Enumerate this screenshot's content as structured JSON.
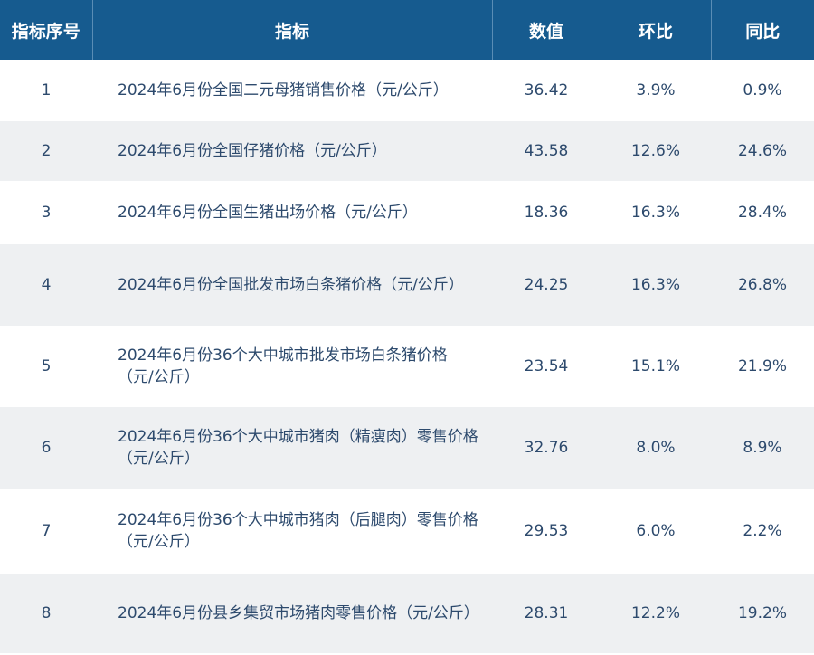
{
  "headers": {
    "index": "指标序号",
    "indicator": "指标",
    "value": "数值",
    "mom": "环比",
    "yoy": "同比"
  },
  "rows": [
    {
      "index": "1",
      "indicator": "2024年6月份全国二元母猪销售价格（元/公斤）",
      "value": "36.42",
      "mom": "3.9%",
      "yoy": "0.9%"
    },
    {
      "index": "2",
      "indicator": "2024年6月份全国仔猪价格（元/公斤）",
      "value": "43.58",
      "mom": "12.6%",
      "yoy": "24.6%"
    },
    {
      "index": "3",
      "indicator": "2024年6月份全国生猪出场价格（元/公斤）",
      "value": "18.36",
      "mom": "16.3%",
      "yoy": "28.4%"
    },
    {
      "index": "4",
      "indicator": "2024年6月份全国批发市场白条猪价格（元/公斤）",
      "value": "24.25",
      "mom": "16.3%",
      "yoy": "26.8%"
    },
    {
      "index": "5",
      "indicator": "2024年6月份36个大中城市批发市场白条猪价格（元/公斤）",
      "value": "23.54",
      "mom": "15.1%",
      "yoy": "21.9%"
    },
    {
      "index": "6",
      "indicator": "2024年6月份36个大中城市猪肉（精瘦肉）零售价格（元/公斤）",
      "value": "32.76",
      "mom": "8.0%",
      "yoy": "8.9%"
    },
    {
      "index": "7",
      "indicator": "2024年6月份36个大中城市猪肉（后腿肉）零售价格（元/公斤）",
      "value": "29.53",
      "mom": "6.0%",
      "yoy": "2.2%"
    },
    {
      "index": "8",
      "indicator": "2024年6月份县乡集贸市场猪肉零售价格（元/公斤）",
      "value": "28.31",
      "mom": "12.2%",
      "yoy": "19.2%"
    }
  ]
}
